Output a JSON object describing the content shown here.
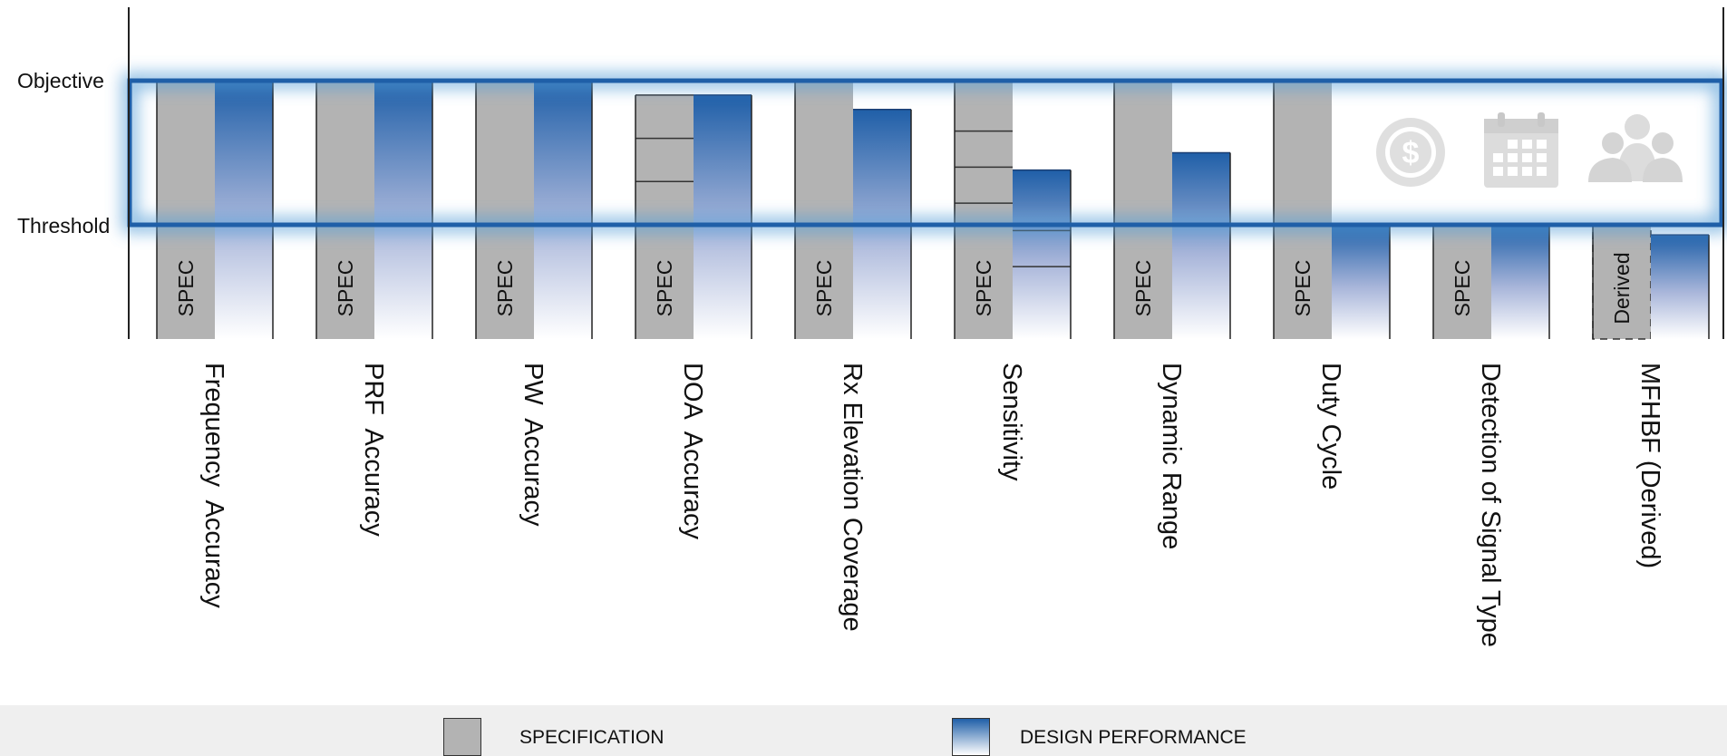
{
  "chart_data": {
    "type": "bar",
    "ylabels": {
      "objective": "Objective",
      "threshold": "Threshold"
    },
    "categories": [
      {
        "label": "Frequency  Accuracy",
        "spec_text": "SPEC",
        "spec_type": "spec",
        "spec_level": 1.0,
        "spec_dividers": [],
        "design_level": 1.0,
        "design_dividers": []
      },
      {
        "label": "PRF  Accuracy",
        "spec_text": "SPEC",
        "spec_type": "spec",
        "spec_level": 1.0,
        "spec_dividers": [],
        "design_level": 1.0,
        "design_dividers": []
      },
      {
        "label": "PW  Accuracy",
        "spec_text": "SPEC",
        "spec_type": "spec",
        "spec_level": 1.0,
        "spec_dividers": [],
        "design_level": 1.0,
        "design_dividers": []
      },
      {
        "label": "DOA  Accuracy",
        "spec_text": "SPEC",
        "spec_type": "spec",
        "spec_level": 0.9,
        "spec_dividers": [
          0.6,
          0.3
        ],
        "design_level": 0.9,
        "design_dividers": []
      },
      {
        "label": "Rx Elevation Coverage",
        "spec_text": "SPEC",
        "spec_type": "spec",
        "spec_level": 1.0,
        "spec_dividers": [],
        "design_level": 0.8,
        "design_dividers": []
      },
      {
        "label": "Sensitivity",
        "spec_text": "SPEC",
        "spec_type": "spec",
        "spec_level": 1.0,
        "spec_dividers": [
          0.65,
          0.4,
          0.15
        ],
        "design_level": 0.38,
        "design_dividers": [
          -0.04,
          -0.29
        ]
      },
      {
        "label": "Dynamic Range",
        "spec_text": "SPEC",
        "spec_type": "spec",
        "spec_level": 1.0,
        "spec_dividers": [],
        "design_level": 0.5,
        "design_dividers": []
      },
      {
        "label": "Duty Cycle",
        "spec_text": "SPEC",
        "spec_type": "spec",
        "spec_level": 1.0,
        "spec_dividers": [],
        "design_level": 0.0,
        "design_dividers": []
      },
      {
        "label": "Detection of Signal Type",
        "spec_text": "SPEC",
        "spec_type": "spec",
        "spec_level": 0.0,
        "spec_dividers": [],
        "design_level": 0.0,
        "design_dividers": []
      },
      {
        "label": "MFHBF (Derived)",
        "spec_text": "Derived",
        "spec_type": "derived",
        "spec_level": 0.0,
        "spec_dividers": [],
        "design_level": -0.07,
        "design_dividers": []
      }
    ],
    "legend": [
      {
        "name": "SPECIFICATION",
        "color": "#b3b3b3"
      },
      {
        "name": "DESIGN PERFORMANCE",
        "color": "#1f5fa8"
      }
    ],
    "icons": [
      "dollar-icon",
      "calendar-icon",
      "team-icon"
    ]
  }
}
